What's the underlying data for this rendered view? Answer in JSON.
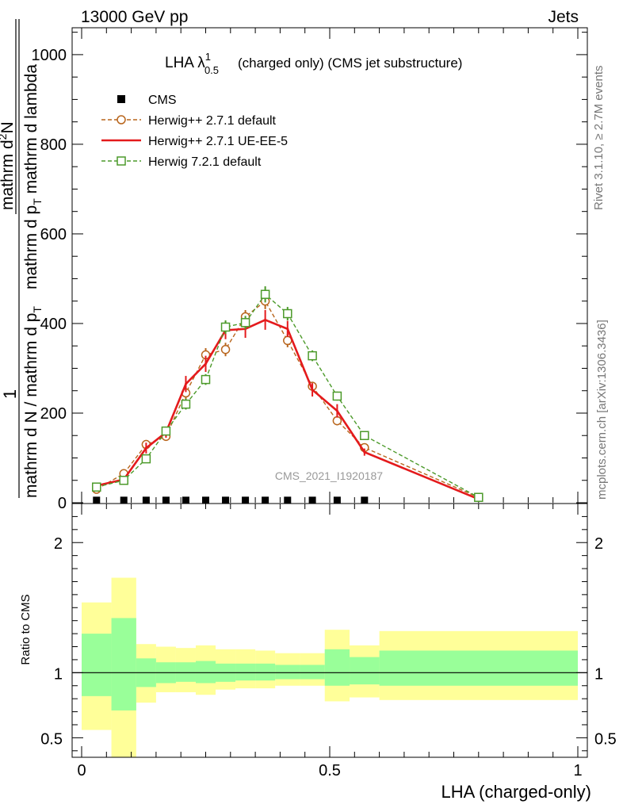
{
  "header": {
    "left": "13000 GeV pp",
    "right": "Jets"
  },
  "side": {
    "rivet": "Rivet 3.1.10, ≥ 2.7M events",
    "site": "mcplots.cern.ch [arXiv:1306.3436]"
  },
  "chart_data": [
    {
      "type": "line",
      "title": "LHA λ",
      "title_sup": "1",
      "title_sub": "0.5",
      "title_rest": "(charged only) (CMS jet substructure)",
      "watermark": "CMS_2021_I1920187",
      "ylabel_one": "1",
      "ylabel_upper": "mathrm dN / mathrm d N / mathrm d p_T mathrm d p_T mathrm d lambda",
      "ylabel_parts": {
        "num_a": "mathrm d",
        "num_b": "2",
        "num_c": "N",
        "den_a": "mathrm d p",
        "den_b": "T",
        "den_c": " mathrm d lambda",
        "left_a": "mathrm d N / mathrm d p",
        "left_b": "T"
      },
      "ylim": [
        0,
        1060
      ],
      "yticks": [
        0,
        200,
        400,
        600,
        800,
        1000
      ],
      "ytick_labels": [
        "0",
        "200",
        "400",
        "600",
        "800",
        "1000"
      ],
      "x": [
        0.03,
        0.085,
        0.13,
        0.17,
        0.21,
        0.25,
        0.29,
        0.33,
        0.37,
        0.415,
        0.465,
        0.515,
        0.57,
        0.8
      ],
      "series": [
        {
          "name": "CMS",
          "color": "#000000",
          "marker": "square",
          "x": [
            0.03,
            0.085,
            0.13,
            0.17,
            0.21,
            0.25,
            0.29,
            0.33,
            0.37,
            0.415,
            0.465,
            0.515,
            0.57
          ],
          "values": [
            2,
            2,
            2,
            2,
            2,
            2,
            2,
            2,
            2,
            2,
            2,
            2,
            2
          ]
        },
        {
          "name": "Herwig++ 2.7.1 default",
          "color": "#b8651c",
          "marker": "circle",
          "dashed": true,
          "values": [
            30,
            65,
            130,
            148,
            245,
            330,
            342,
            415,
            450,
            362,
            260,
            183,
            123,
            12
          ],
          "errors": [
            6,
            6,
            10,
            10,
            15,
            15,
            15,
            15,
            18,
            15,
            10,
            10,
            8,
            3
          ]
        },
        {
          "name": "Herwig++ 2.7.1 UE-EE-5",
          "color": "#e41a1c",
          "marker": "none",
          "dashed": false,
          "values": [
            38,
            52,
            122,
            157,
            265,
            310,
            385,
            388,
            408,
            388,
            252,
            205,
            113,
            8
          ],
          "errors": [
            6,
            6,
            12,
            12,
            18,
            18,
            20,
            20,
            22,
            18,
            15,
            15,
            8,
            3
          ]
        },
        {
          "name": "Herwig 7.2.1 default",
          "color": "#4c9a2a",
          "marker": "square-open",
          "dashed": true,
          "values": [
            35,
            50,
            98,
            160,
            220,
            275,
            392,
            402,
            465,
            422,
            328,
            238,
            150,
            12
          ],
          "errors": [
            5,
            5,
            8,
            10,
            12,
            12,
            15,
            15,
            18,
            15,
            12,
            10,
            8,
            3
          ]
        }
      ]
    },
    {
      "type": "area",
      "ylabel": "Ratio to CMS",
      "xlabel": "LHA (charged-only)",
      "xlim": [
        0,
        1
      ],
      "xticks": [
        0,
        0.5,
        1
      ],
      "xtick_labels": [
        "0",
        "0.5",
        "1"
      ],
      "ylim": [
        0.35,
        2.3
      ],
      "yticks": [
        0.5,
        1,
        2
      ],
      "ytick_labels": [
        "0.5",
        "1",
        "2"
      ],
      "bin_edges": [
        0,
        0.06,
        0.11,
        0.15,
        0.19,
        0.23,
        0.27,
        0.31,
        0.35,
        0.39,
        0.44,
        0.49,
        0.54,
        0.6,
        1.0
      ],
      "band_yellow": {
        "color": "#ffff99",
        "low": [
          0.56,
          0.32,
          0.77,
          0.85,
          0.85,
          0.83,
          0.87,
          0.88,
          0.88,
          0.9,
          0.9,
          0.78,
          0.81,
          0.79
        ],
        "high": [
          1.54,
          1.73,
          1.22,
          1.2,
          1.19,
          1.21,
          1.18,
          1.18,
          1.17,
          1.15,
          1.15,
          1.33,
          1.21,
          1.32
        ]
      },
      "band_green": {
        "color": "#99ff99",
        "low": [
          0.82,
          0.71,
          0.89,
          0.92,
          0.93,
          0.92,
          0.93,
          0.94,
          0.94,
          0.95,
          0.95,
          0.9,
          0.91,
          0.9
        ],
        "high": [
          1.3,
          1.42,
          1.11,
          1.08,
          1.08,
          1.09,
          1.07,
          1.07,
          1.07,
          1.06,
          1.06,
          1.18,
          1.12,
          1.17
        ]
      },
      "reference_line": 1
    }
  ]
}
